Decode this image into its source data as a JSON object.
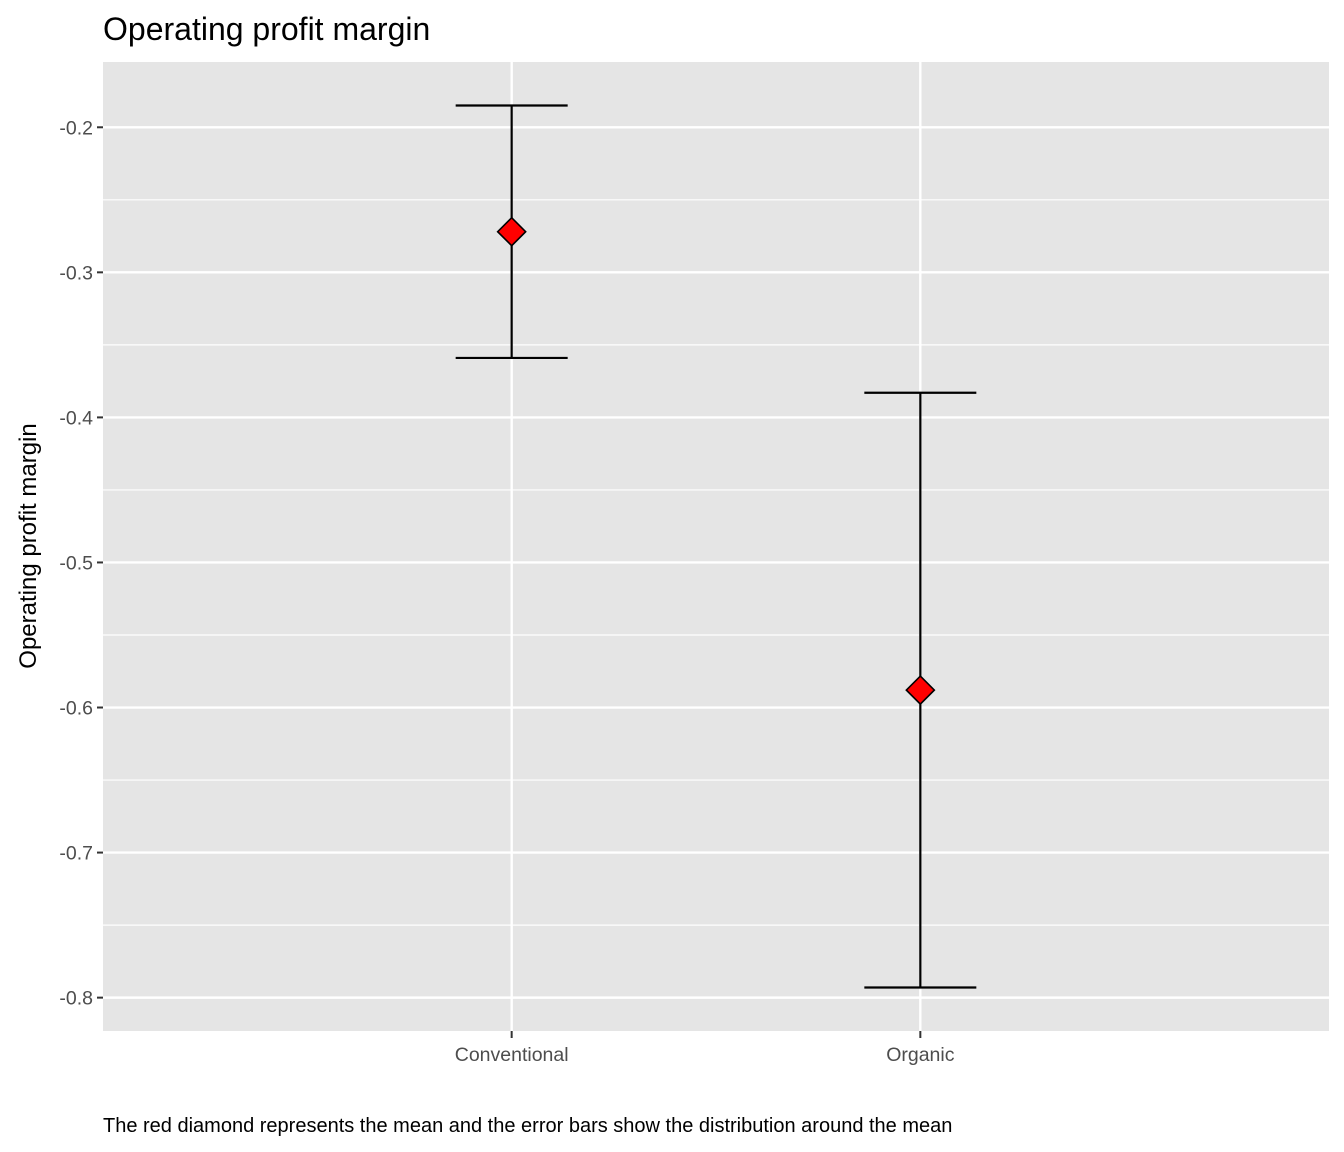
{
  "chart_data": {
    "type": "errorbar",
    "title": "Operating profit margin",
    "xlabel": "",
    "ylabel": "Operating profit margin",
    "caption": "The red diamond represents the mean and the error bars show the distribution around the mean",
    "categories": [
      "Conventional",
      "Organic"
    ],
    "means": [
      -0.272,
      -0.588
    ],
    "lower": [
      -0.359,
      -0.793
    ],
    "upper": [
      -0.185,
      -0.383
    ],
    "ylim": [
      -0.823,
      -0.155
    ],
    "yticks": [
      -0.2,
      -0.3,
      -0.4,
      -0.5,
      -0.6,
      -0.7,
      -0.8
    ],
    "ytick_labels": [
      "-0.2",
      "-0.3",
      "-0.4",
      "-0.5",
      "-0.6",
      "-0.7",
      "-0.8"
    ],
    "grid": true,
    "colors": {
      "panel_background": "#e5e5e5",
      "grid": "#ffffff",
      "marker_fill": "#ff0000",
      "marker_stroke": "#000000",
      "errorbar": "#000000",
      "tick_text": "#4d4d4d"
    }
  }
}
